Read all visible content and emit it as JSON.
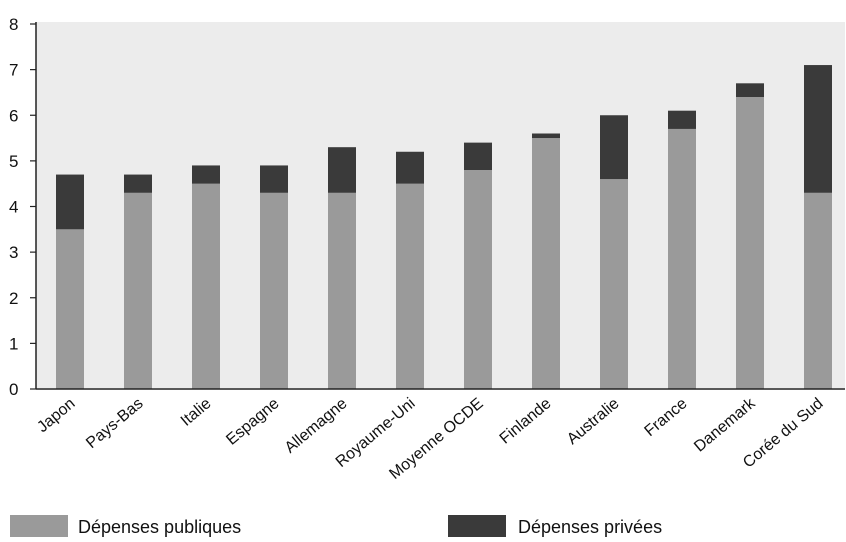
{
  "chart_data": {
    "type": "bar",
    "stacked": true,
    "categories": [
      "Japon",
      "Pays-Bas",
      "Italie",
      "Espagne",
      "Allemagne",
      "Royaume-Uni",
      "Moyenne OCDE",
      "Finlande",
      "Australie",
      "France",
      "Danemark",
      "Corée du Sud"
    ],
    "series": [
      {
        "name": "Dépenses publiques",
        "color": "#9a9a9a",
        "values": [
          3.5,
          4.3,
          4.5,
          4.3,
          4.3,
          4.5,
          4.8,
          5.5,
          4.6,
          5.7,
          6.4,
          4.3
        ]
      },
      {
        "name": "Dépenses privées",
        "color": "#3a3a3a",
        "values": [
          1.2,
          0.4,
          0.4,
          0.6,
          1.0,
          0.7,
          0.6,
          0.1,
          1.4,
          0.4,
          0.3,
          2.8
        ]
      }
    ],
    "y_ticks": [
      "0",
      "1",
      "2",
      "3",
      "4",
      "5",
      "6",
      "7",
      "8"
    ],
    "ylim": [
      0,
      8
    ],
    "grid": false,
    "legend_position": "bottom"
  }
}
